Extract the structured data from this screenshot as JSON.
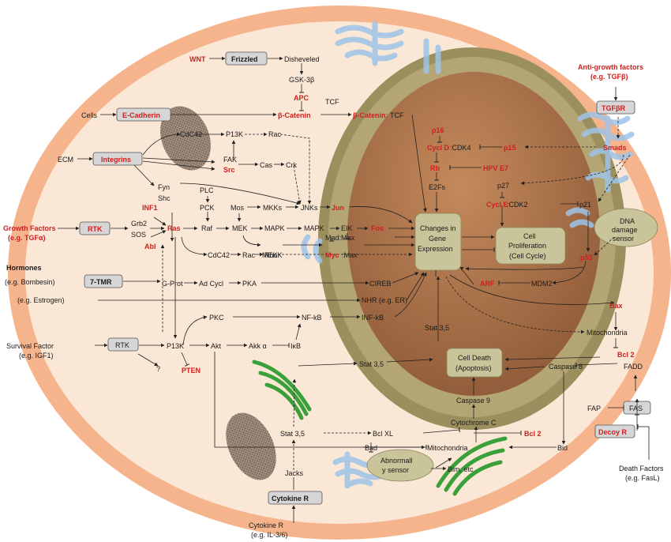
{
  "labels": {
    "wnt": "WNT",
    "frizzled": "Frizzled",
    "disheveled": "Disheveled",
    "gsk3b": "GSK-3β",
    "apc": "APC",
    "bcatenin": "β-Catenin",
    "tcf_top": "TCF",
    "bcatenin_tcf_red": "β-Catenin:",
    "bcatenin_tcf_blk": "TCF",
    "anti_growth": "Anti-growth factors",
    "anti_growth_eg": "(e.g. TGFβ)",
    "tgfbr": "TGFβR",
    "smads": "Smads",
    "cells": "Cells",
    "ecadherin": "E-Cadherin",
    "cdc42_top": "CdC42",
    "p13k_top": "P13K",
    "rac_top": "Rac",
    "ecm": "ECM",
    "integrins": "Integrins",
    "fak": "FAK",
    "src": "Src",
    "cas": "Cas",
    "crk": "Crk",
    "fyn": "Fyn",
    "shc": "Shc",
    "plc": "PLC",
    "pck": "PCK",
    "mos": "Mos",
    "mkks": "MKKs",
    "jnks": "JNKs",
    "jun": "Jun",
    "growth": "Growth Factors",
    "growth_eg": "(e.g. TGFα)",
    "rtk1": "RTK",
    "inf1": "INF1",
    "grb2": "Grb2",
    "sos": "SOS",
    "ras": "Ras",
    "abl": "Abl",
    "raf": "Raf",
    "mek": "MEK",
    "mapk1": "MAPK",
    "mapk2": "MAPK",
    "eik": "EIK",
    "fos": "Fos",
    "madmax": "Mad:Max",
    "mekk": "MEKK",
    "myc": "Myc",
    "myc_max": ":Max",
    "changes1": "Changes in",
    "changes2": "Gene",
    "changes3": "Expression",
    "cellprolif1": "Cell",
    "cellprolif2": "Proliferation",
    "cellprolif3": "(Cell Cycle)",
    "p16": "p16",
    "cycld": "Cycl D",
    "cdk4": ":CDK4",
    "p15": "p15",
    "rb": "Rb",
    "hpv": "HPV E7",
    "e2fs": "E2Fs",
    "p27": "p27",
    "cycle": "Cycl E",
    "cdk2": ":CDK2",
    "p21": "p21",
    "dna1": "DNA",
    "dna2": "damage",
    "dna3": "sensor",
    "p53": "p53",
    "arf": "ARF",
    "mdm2": "MDM2",
    "hormones": "Hormones",
    "bombesin": "(e.g. Bombesin)",
    "tmr": "7-TMR",
    "gprot": "G-Prot",
    "adcycl": "Ad Cycl",
    "pka": "PKA",
    "cireb": "CIREB",
    "cdc42_mid": "CdC42",
    "rac_mid": "Rac",
    "rho": "Rho",
    "estrogen": "(e.g. Estrogen)",
    "nhr": "NHR (e.g. ER)",
    "bax": "Bax",
    "mito_right": "Mitochondria",
    "survival": "Survival Factor",
    "survival_eg": "(e.g. IGF1)",
    "rtk2": "RTK",
    "p13k_low": "P13K",
    "akt": "Akt",
    "akka": "Akk α",
    "ikb": "IκB",
    "pkc": "PKC",
    "nfkb1": "NF-kB",
    "nfkb2": "INF-kB",
    "pten": "PTEN",
    "q": "?",
    "stat35a": "Stat 3,5",
    "stat35b": "Stat 3,5",
    "stat35c": "Stat 3,5",
    "death1": "Cell Death",
    "death2": "(Apoptosis)",
    "bcl2a": "Bcl 2",
    "caspase8": "Caspase 8",
    "fadd": "FADD",
    "caspase9": "Caspase 9",
    "cytc": "Cytochrome C",
    "bclxl": "Bcl XL",
    "bcl2b": "Bcl 2",
    "bad": "Bad",
    "mito_low": "Mitochondria",
    "bid": "Bid",
    "fap": "FAP",
    "fas": "FAS",
    "decoy": "Decoy R",
    "abn1": "Abnormall",
    "abn2": "y sensor",
    "bim": "Bim, etc",
    "jacks": "Jacks",
    "cytokiner": "Cytokine R",
    "cytokine_lbl": "Cytokine R",
    "cytokine_eg": "(e.g. IL-3/6)",
    "death_factors": "Death Factors",
    "death_eg": "(e.g. FasL)"
  },
  "colors": {
    "cell_border": "#f6b48c",
    "cytoplasm": "#fbe7d6",
    "nuclear_envelope": "#9c8f5e",
    "nucleus": "#a06a43",
    "box_fill": "#d6d6d6",
    "oval_fill": "#c9c49a",
    "red_text": "#d0201f",
    "er_blue": "#9ec4e8",
    "mito_green": "#3aa13a",
    "granule": "#8a786a"
  }
}
